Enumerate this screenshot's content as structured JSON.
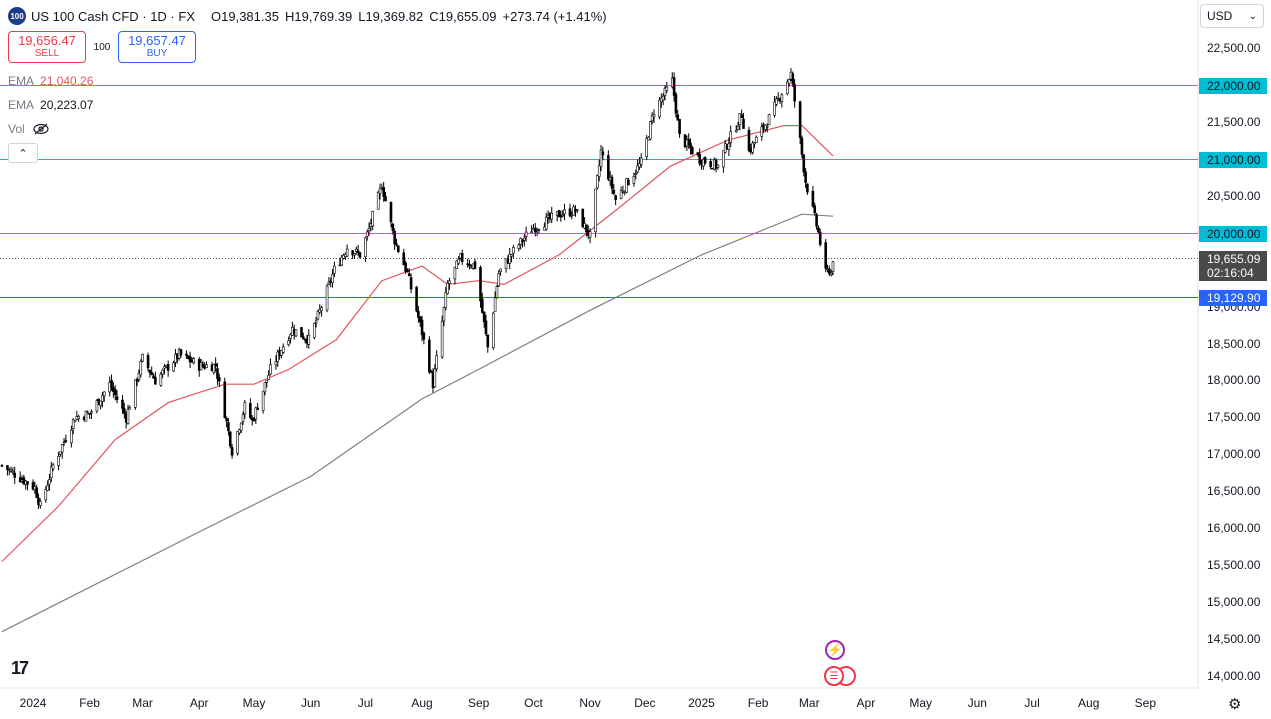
{
  "header": {
    "symbol_badge": "100",
    "title": "US 100 Cash CFD · 1D · FX",
    "open_key": "O",
    "open": "19,381.35",
    "high_key": "H",
    "high": "19,769.39",
    "low_key": "L",
    "low": "19,369.82",
    "close_key": "C",
    "close": "19,655.09",
    "change": "+273.74 (+1.41%)"
  },
  "trade": {
    "sell_price": "19,656.47",
    "sell_label": "SELL",
    "spread": "100",
    "buy_price": "19,657.47",
    "buy_label": "BUY"
  },
  "indicators": {
    "ema1_label": "EMA",
    "ema1_value": "21,040.26",
    "ema2_label": "EMA",
    "ema2_value": "20,223.07",
    "vol_label": "Vol"
  },
  "currency": "USD",
  "colors": {
    "ema_fast": "#e0555f",
    "ema_slow": "#808080",
    "hline": "#00bcd4",
    "support": "#2962ff",
    "candles": "#000000"
  },
  "chart_data": {
    "type": "candlestick",
    "ylim": [
      13850,
      22850
    ],
    "y_ticks": [
      "22,500.00",
      "22,000.00",
      "21,500.00",
      "21,000.00",
      "20,500.00",
      "20,000.00",
      "19,500.00",
      "19,000.00",
      "18,500.00",
      "18,000.00",
      "17,500.00",
      "17,000.00",
      "16,500.00",
      "16,000.00",
      "15,500.00",
      "15,000.00",
      "14,500.00",
      "14,000.00"
    ],
    "x_ticks": [
      "2024",
      "Feb",
      "Mar",
      "Apr",
      "May",
      "Jun",
      "Jul",
      "Aug",
      "Sep",
      "Oct",
      "Nov",
      "Dec",
      "2025",
      "Feb",
      "Mar",
      "Apr",
      "May",
      "Jun",
      "Jul",
      "Aug",
      "Sep"
    ],
    "horizontal_lines": [
      {
        "price": 22000,
        "label": "22,000.00",
        "color": "#00bcd4"
      },
      {
        "price": 21000,
        "label": "21,000.00",
        "color": "#00bcd4"
      },
      {
        "price": 20000,
        "label": "20,000.00",
        "color": "#00bcd4"
      },
      {
        "price": 19129.9,
        "label": "19,129.90",
        "color": "#2962ff"
      }
    ],
    "last_price": {
      "price": 19655.09,
      "label": "19,655.09",
      "countdown": "02:16:04"
    },
    "close_path": [
      [
        "2023-12-15",
        16850
      ],
      [
        "2024-01-02",
        16550
      ],
      [
        "2024-01-05",
        16300
      ],
      [
        "2024-01-12",
        16850
      ],
      [
        "2024-01-24",
        17500
      ],
      [
        "2024-02-01",
        17550
      ],
      [
        "2024-02-12",
        17950
      ],
      [
        "2024-02-21",
        17500
      ],
      [
        "2024-03-01",
        18300
      ],
      [
        "2024-03-08",
        18000
      ],
      [
        "2024-03-21",
        18350
      ],
      [
        "2024-04-01",
        18200
      ],
      [
        "2024-04-10",
        18200
      ],
      [
        "2024-04-19",
        17050
      ],
      [
        "2024-04-26",
        17650
      ],
      [
        "2024-04-30",
        17450
      ],
      [
        "2024-05-10",
        18150
      ],
      [
        "2024-05-22",
        18700
      ],
      [
        "2024-05-31",
        18550
      ],
      [
        "2024-06-07",
        19000
      ],
      [
        "2024-06-14",
        19500
      ],
      [
        "2024-06-21",
        19800
      ],
      [
        "2024-06-28",
        19700
      ],
      [
        "2024-07-03",
        20050
      ],
      [
        "2024-07-10",
        20650
      ],
      [
        "2024-07-17",
        19900
      ],
      [
        "2024-07-24",
        19450
      ],
      [
        "2024-08-01",
        18650
      ],
      [
        "2024-08-07",
        17950
      ],
      [
        "2024-08-15",
        19300
      ],
      [
        "2024-08-22",
        19650
      ],
      [
        "2024-08-30",
        19550
      ],
      [
        "2024-09-06",
        18450
      ],
      [
        "2024-09-12",
        19450
      ],
      [
        "2024-09-20",
        19750
      ],
      [
        "2024-09-30",
        20050
      ],
      [
        "2024-10-15",
        20250
      ],
      [
        "2024-10-24",
        20300
      ],
      [
        "2024-11-01",
        19950
      ],
      [
        "2024-11-07",
        21100
      ],
      [
        "2024-11-15",
        20450
      ],
      [
        "2024-11-29",
        20950
      ],
      [
        "2024-12-06",
        21650
      ],
      [
        "2024-12-16",
        22050
      ],
      [
        "2024-12-20",
        21300
      ],
      [
        "2024-12-31",
        21000
      ],
      [
        "2025-01-10",
        20900
      ],
      [
        "2025-01-15",
        21200
      ],
      [
        "2025-01-23",
        21600
      ],
      [
        "2025-01-27",
        21100
      ],
      [
        "2025-02-07",
        21550
      ],
      [
        "2025-02-19",
        22150
      ],
      [
        "2025-02-27",
        20700
      ],
      [
        "2025-03-06",
        20000
      ],
      [
        "2025-03-10",
        19450
      ],
      [
        "2025-03-12",
        19500
      ],
      [
        "2025-03-13",
        19450
      ],
      [
        "2025-03-14",
        19655
      ]
    ],
    "ema_fast_path": [
      [
        "2023-12-15",
        15550
      ],
      [
        "2024-01-15",
        16300
      ],
      [
        "2024-02-15",
        17200
      ],
      [
        "2024-03-15",
        17700
      ],
      [
        "2024-04-15",
        17950
      ],
      [
        "2024-05-01",
        17950
      ],
      [
        "2024-05-20",
        18150
      ],
      [
        "2024-06-15",
        18550
      ],
      [
        "2024-07-10",
        19350
      ],
      [
        "2024-08-01",
        19550
      ],
      [
        "2024-08-15",
        19300
      ],
      [
        "2024-09-01",
        19350
      ],
      [
        "2024-09-15",
        19300
      ],
      [
        "2024-10-15",
        19700
      ],
      [
        "2024-11-15",
        20300
      ],
      [
        "2024-12-15",
        20900
      ],
      [
        "2025-01-15",
        21250
      ],
      [
        "2025-02-15",
        21450
      ],
      [
        "2025-02-25",
        21450
      ],
      [
        "2025-03-14",
        21040
      ]
    ],
    "ema_slow_path": [
      [
        "2023-12-15",
        14600
      ],
      [
        "2024-02-01",
        15200
      ],
      [
        "2024-04-01",
        15950
      ],
      [
        "2024-06-01",
        16700
      ],
      [
        "2024-08-01",
        17750
      ],
      [
        "2024-09-01",
        18150
      ],
      [
        "2024-11-01",
        18950
      ],
      [
        "2025-01-01",
        19700
      ],
      [
        "2025-02-25",
        20250
      ],
      [
        "2025-03-14",
        20223
      ]
    ],
    "reference_time": "2025-03-14"
  }
}
